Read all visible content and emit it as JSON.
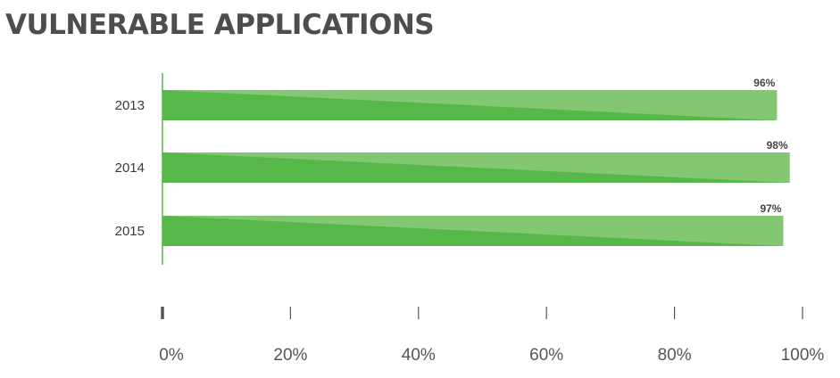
{
  "title": "VULNERABLE APPLICATIONS",
  "chart_data": {
    "type": "bar",
    "orientation": "horizontal",
    "title": "VULNERABLE APPLICATIONS",
    "categories": [
      "2013",
      "2014",
      "2015"
    ],
    "values": [
      96,
      98,
      97
    ],
    "value_labels": [
      "96%",
      "98%",
      "97%"
    ],
    "xlim": [
      0,
      100
    ],
    "xticks": [
      0,
      20,
      40,
      60,
      80,
      100
    ],
    "xtick_labels": [
      "0%",
      "20%",
      "40%",
      "60%",
      "80%",
      "100%"
    ],
    "xlabel": "",
    "ylabel": "",
    "grid": false,
    "legend": "none",
    "colors": {
      "bar_dark": "#55b848",
      "bar_light": "#99d08c",
      "bar_mid": "#7cc46b",
      "axis": "#55b848",
      "tick": "#555555"
    }
  }
}
